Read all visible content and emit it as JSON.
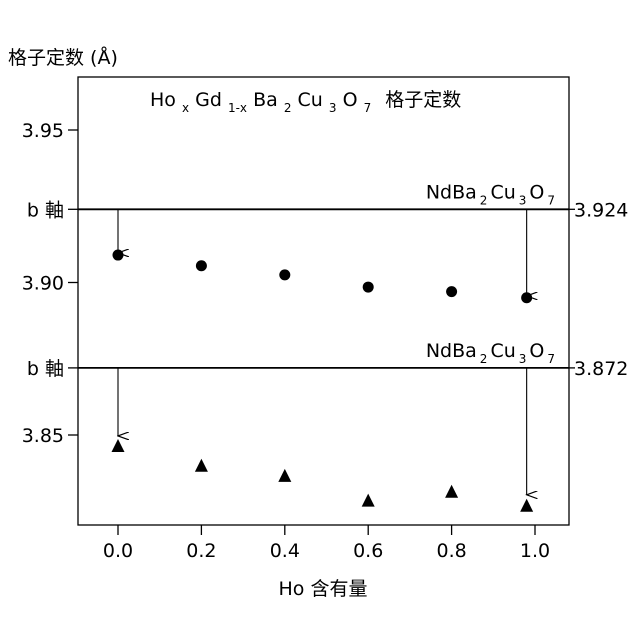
{
  "chart_data": {
    "type": "scatter",
    "title_parts": {
      "ho": "Ho",
      "x_sub": "x",
      "gd": "Gd",
      "gd_sub": "1-x",
      "ba": "Ba",
      "ba_sub": "2",
      "cu": "Cu",
      "cu_sub": "3",
      "o": "O",
      "o_sub": "7",
      "suffix": "格子定数"
    },
    "ylabel": "格子定数 (Å)",
    "xlabel": "Ho 含有量",
    "xlim": [
      -0.1,
      1.08
    ],
    "ylim": [
      3.82,
      3.97
    ],
    "x_ticks": [
      "0.0",
      "0.2",
      "0.4",
      "0.6",
      "0.8",
      "1.0"
    ],
    "y_ticks": [
      "3.85",
      "3.90",
      "3.95"
    ],
    "reference_lines": [
      {
        "y": 3.924,
        "value_label": "3.924",
        "axis_label": "b 軸",
        "compound": {
          "nd": "NdBa",
          "s1": "2",
          "cu": "Cu",
          "s2": "3",
          "o": "O",
          "s3": "7"
        }
      },
      {
        "y": 3.872,
        "value_label": "3.872",
        "axis_label": "b 軸",
        "compound": {
          "nd": "NdBa",
          "s1": "2",
          "cu": "Cu",
          "s2": "3",
          "o": "O",
          "s3": "7"
        }
      }
    ],
    "series": [
      {
        "marker": "circle",
        "x": [
          0.0,
          0.2,
          0.4,
          0.6,
          0.8,
          0.98
        ],
        "y": [
          3.909,
          3.9055,
          3.9025,
          3.8985,
          3.897,
          3.895
        ]
      },
      {
        "marker": "triangle",
        "x": [
          0.0,
          0.2,
          0.4,
          0.6,
          0.8,
          0.98
        ],
        "y": [
          3.8464,
          3.8399,
          3.8366,
          3.8285,
          3.8314,
          3.8268
        ]
      }
    ],
    "arrows": [
      {
        "x": 0.0,
        "y_from": 3.924,
        "y_to": 3.9097
      },
      {
        "x": 0.98,
        "y_from": 3.924,
        "y_to": 3.8956
      },
      {
        "x": 0.0,
        "y_from": 3.872,
        "y_to": 3.8497
      },
      {
        "x": 0.98,
        "y_from": 3.872,
        "y_to": 3.8304
      }
    ],
    "grid": false,
    "legend": "none"
  }
}
